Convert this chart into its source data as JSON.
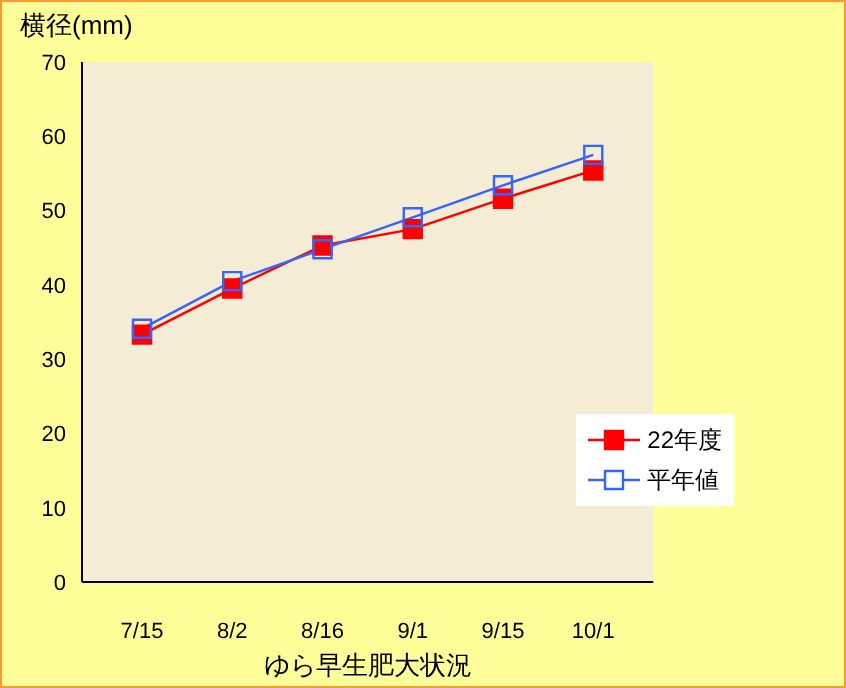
{
  "chart_data": {
    "type": "line",
    "ylabel": "横径(mm)",
    "xlabel": "ゆら早生肥大状況",
    "categories": [
      "7/15",
      "8/2",
      "8/16",
      "9/1",
      "9/15",
      "10/1"
    ],
    "series": [
      {
        "name": "22年度",
        "color": "#ff0000",
        "values": [
          33.3,
          39.5,
          45.3,
          47.5,
          51.6,
          55.4
        ]
      },
      {
        "name": "平年値",
        "color": "#3366ff",
        "values": [
          34.1,
          40.5,
          44.8,
          49.1,
          53.4,
          57.5
        ]
      }
    ],
    "ylim": [
      0,
      70
    ],
    "yticks": [
      0,
      10,
      20,
      30,
      40,
      50,
      60,
      70
    ],
    "grid": false,
    "legend": "bottom right",
    "marker": "square",
    "line_style": "solid"
  }
}
